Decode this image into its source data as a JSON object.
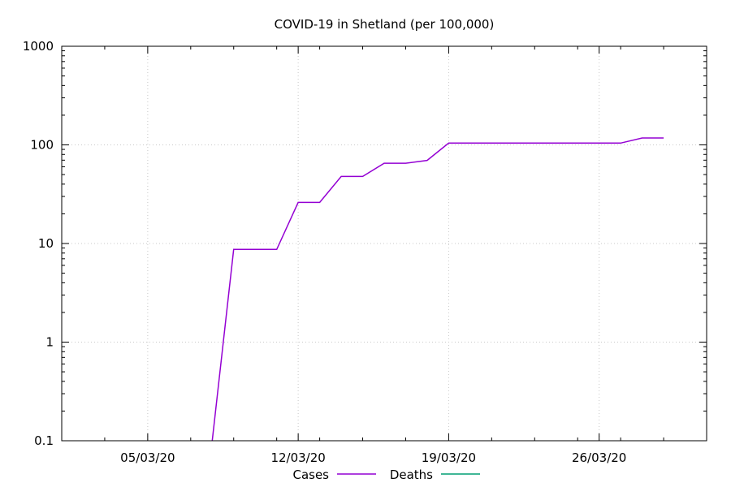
{
  "chart_data": {
    "type": "line",
    "title": "COVID-19 in Shetland (per 100,000)",
    "xlabel": "",
    "ylabel": "",
    "y_scale": "log",
    "ylim": [
      0.1,
      1000
    ],
    "xlim": [
      "2020-03-01",
      "2020-03-31"
    ],
    "x_ticks": [
      "05/03/20",
      "12/03/20",
      "19/03/20",
      "26/03/20"
    ],
    "x_tick_dates": [
      "2020-03-05",
      "2020-03-12",
      "2020-03-19",
      "2020-03-26"
    ],
    "y_ticks": [
      "0.1",
      "1",
      "10",
      "100",
      "1000"
    ],
    "y_tick_values": [
      0.1,
      1,
      10,
      100,
      1000
    ],
    "grid": true,
    "legend_position": "bottom-center",
    "series": [
      {
        "name": "Cases",
        "color": "#9400d3",
        "x": [
          "2020-03-08",
          "2020-03-09",
          "2020-03-10",
          "2020-03-11",
          "2020-03-12",
          "2020-03-13",
          "2020-03-14",
          "2020-03-15",
          "2020-03-16",
          "2020-03-17",
          "2020-03-18",
          "2020-03-19",
          "2020-03-20",
          "2020-03-21",
          "2020-03-22",
          "2020-03-23",
          "2020-03-24",
          "2020-03-25",
          "2020-03-26",
          "2020-03-27",
          "2020-03-28",
          "2020-03-29"
        ],
        "values": [
          0.1,
          8.7,
          8.7,
          8.7,
          26.1,
          26.1,
          47.8,
          47.8,
          65.2,
          65.2,
          69.6,
          104.3,
          104.3,
          104.3,
          104.3,
          104.3,
          104.3,
          104.3,
          104.3,
          104.3,
          117.4,
          117.4
        ]
      },
      {
        "name": "Deaths",
        "color": "#009e73",
        "x": [],
        "values": []
      }
    ]
  }
}
